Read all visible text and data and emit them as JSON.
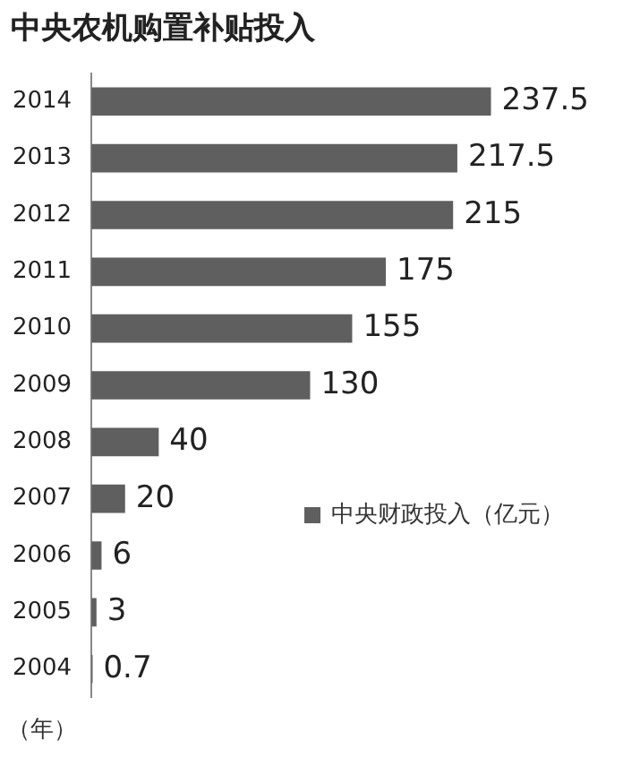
{
  "chart_data": {
    "type": "bar",
    "orientation": "horizontal",
    "title": "中央农机购置补贴投入",
    "ylabel": "（年）",
    "categories": [
      "2014",
      "2013",
      "2012",
      "2011",
      "2010",
      "2009",
      "2008",
      "2007",
      "2006",
      "2005",
      "2004"
    ],
    "series": [
      {
        "name": "中央财政投入（亿元）",
        "color": "#5f5f5f",
        "values": [
          237.5,
          217.5,
          215,
          175,
          155,
          130,
          40,
          20,
          6,
          3,
          0.7
        ]
      }
    ],
    "data_labels": true,
    "legend": "right"
  }
}
